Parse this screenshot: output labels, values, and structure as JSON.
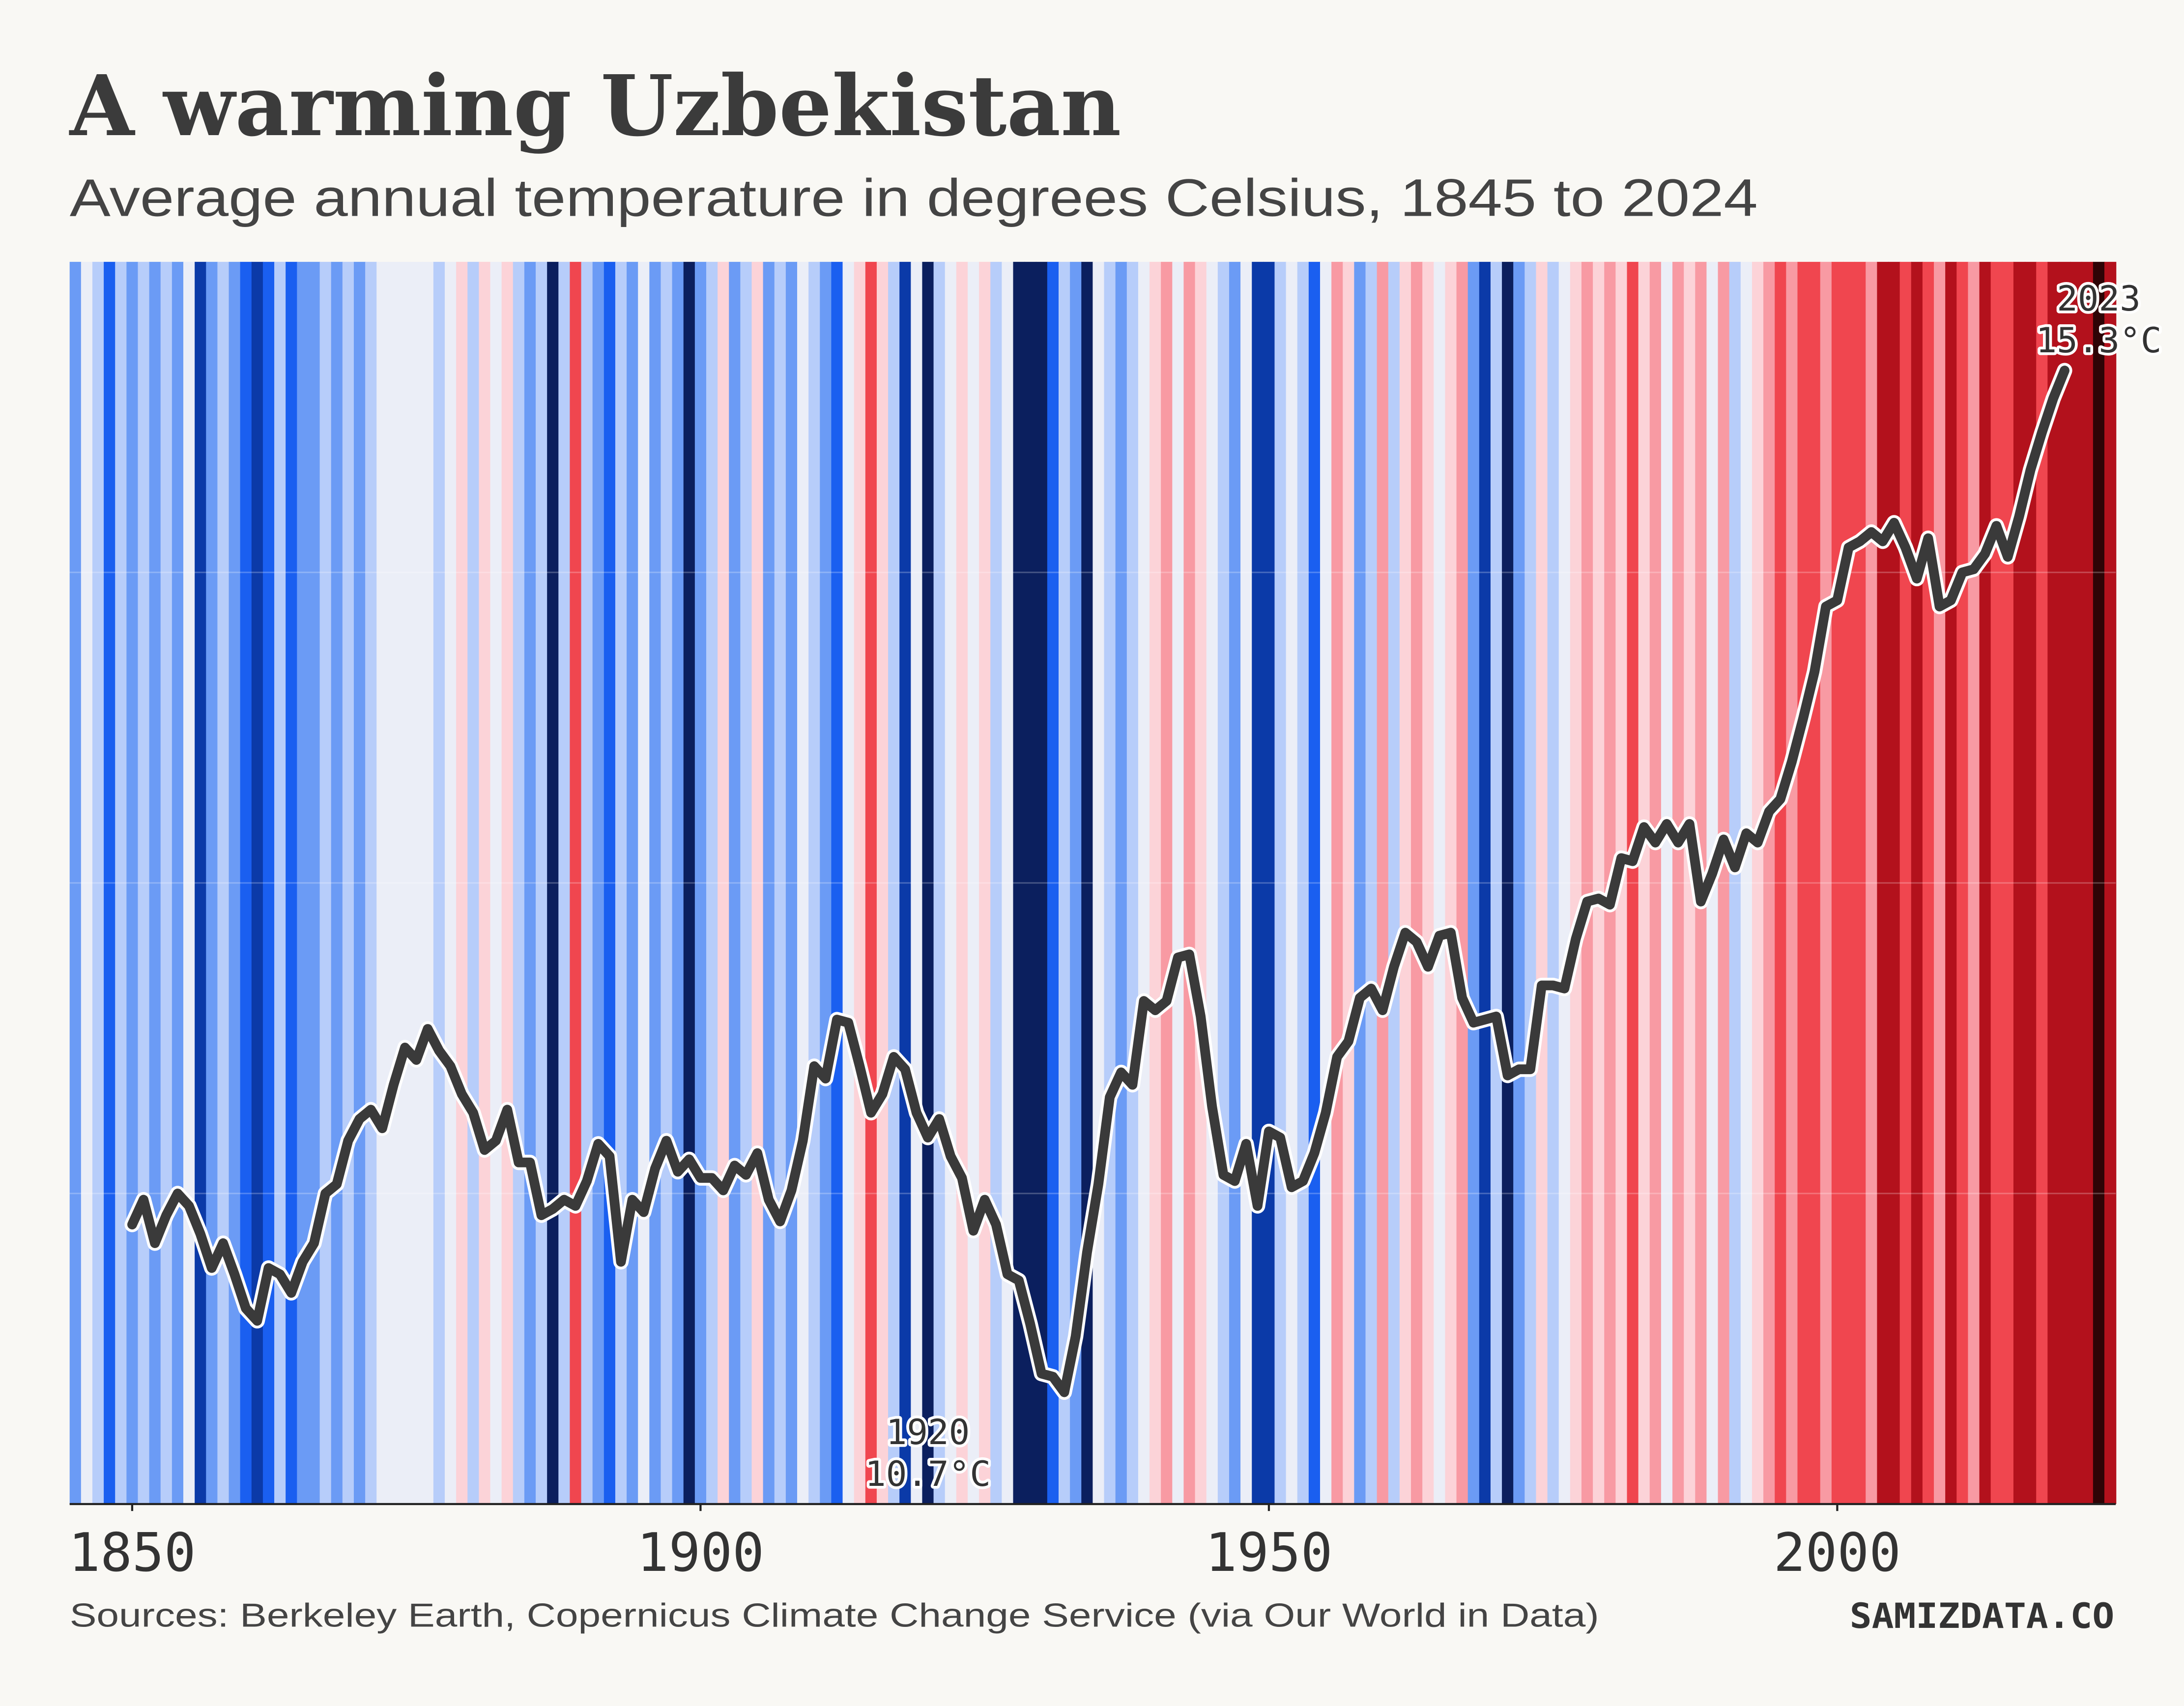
{
  "chart_data": {
    "type": "stripes",
    "title": "A warming Uzbekistan",
    "subtitle": "Average annual temperature in degrees Celsius, 1845 to 2024",
    "source": "Sources: Berkeley Earth, Copernicus Climate Change Service (via Our World in Data)",
    "brand": "SAMIZDATA.CO",
    "xlim": [
      1845,
      2025
    ],
    "xticks": [
      1850,
      1900,
      1950,
      2000
    ],
    "ylim": [
      11,
      15
    ],
    "ygrid": [
      12,
      13,
      14
    ],
    "stripe_colors": [
      "#0b1f5e",
      "#0b3aa8",
      "#1a5ff0",
      "#6b9bf5",
      "#b7cdfa",
      "#ebeef7",
      "#fcd3d8",
      "#f89aa3",
      "#f0464f",
      "#b3111c",
      "#2e0406"
    ],
    "stripe_color_range": [
      10.7,
      15.3
    ],
    "stripes": {
      "x": [
        1845,
        1846,
        1847,
        1848,
        1849,
        1850,
        1851,
        1852,
        1853,
        1854,
        1855,
        1856,
        1857,
        1858,
        1859,
        1860,
        1861,
        1862,
        1863,
        1864,
        1865,
        1866,
        1867,
        1868,
        1869,
        1870,
        1871,
        1872,
        1873,
        1874,
        1875,
        1876,
        1877,
        1878,
        1879,
        1880,
        1881,
        1882,
        1883,
        1884,
        1885,
        1886,
        1887,
        1888,
        1889,
        1890,
        1891,
        1892,
        1893,
        1894,
        1895,
        1896,
        1897,
        1898,
        1899,
        1900,
        1901,
        1902,
        1903,
        1904,
        1905,
        1906,
        1907,
        1908,
        1909,
        1910,
        1911,
        1912,
        1913,
        1914,
        1915,
        1916,
        1917,
        1918,
        1919,
        1920,
        1921,
        1922,
        1923,
        1924,
        1925,
        1926,
        1927,
        1928,
        1929,
        1930,
        1931,
        1932,
        1933,
        1934,
        1935,
        1936,
        1937,
        1938,
        1939,
        1940,
        1941,
        1942,
        1943,
        1944,
        1945,
        1946,
        1947,
        1948,
        1949,
        1950,
        1951,
        1952,
        1953,
        1954,
        1955,
        1956,
        1957,
        1958,
        1959,
        1960,
        1961,
        1962,
        1963,
        1964,
        1965,
        1966,
        1967,
        1968,
        1969,
        1970,
        1971,
        1972,
        1973,
        1974,
        1975,
        1976,
        1977,
        1978,
        1979,
        1980,
        1981,
        1982,
        1983,
        1984,
        1985,
        1986,
        1987,
        1988,
        1989,
        1990,
        1991,
        1992,
        1993,
        1994,
        1995,
        1996,
        1997,
        1998,
        1999,
        2000,
        2001,
        2002,
        2003,
        2004,
        2005,
        2006,
        2007,
        2008,
        2009,
        2010,
        2011,
        2012,
        2013,
        2014,
        2015,
        2016,
        2017,
        2018,
        2019,
        2020,
        2021,
        2022,
        2023,
        2024
      ],
      "values": [
        12.1,
        13.0,
        12.5,
        11.6,
        12.5,
        12.1,
        12.5,
        12.1,
        12.5,
        12.1,
        13.0,
        11.2,
        12.1,
        12.5,
        12.1,
        11.6,
        11.2,
        11.6,
        12.5,
        11.6,
        12.1,
        12.1,
        12.5,
        12.1,
        12.5,
        12.1,
        12.5,
        13.0,
        13.0,
        13.0,
        13.0,
        13.0,
        12.5,
        13.0,
        13.4,
        12.5,
        13.4,
        13.0,
        13.4,
        12.5,
        12.1,
        12.5,
        10.9,
        12.5,
        14.3,
        12.5,
        12.1,
        11.6,
        12.5,
        12.1,
        13.0,
        12.1,
        12.5,
        12.1,
        10.9,
        12.1,
        12.5,
        13.4,
        12.1,
        12.5,
        13.4,
        12.1,
        12.5,
        12.1,
        13.0,
        12.5,
        12.1,
        11.6,
        13.0,
        13.4,
        14.3,
        13.4,
        12.5,
        11.2,
        13.0,
        10.7,
        12.5,
        13.0,
        13.4,
        13.0,
        13.4,
        12.5,
        13.0,
        10.8,
        10.8,
        10.9,
        11.6,
        12.5,
        12.1,
        10.9,
        13.0,
        12.5,
        12.1,
        12.5,
        13.0,
        13.4,
        13.9,
        13.0,
        13.9,
        13.4,
        13.0,
        12.5,
        12.1,
        13.0,
        11.2,
        11.2,
        12.5,
        13.0,
        12.5,
        11.6,
        13.0,
        13.9,
        13.4,
        12.1,
        12.5,
        13.9,
        12.5,
        13.4,
        13.9,
        13.4,
        13.0,
        13.4,
        13.9,
        12.1,
        11.2,
        12.5,
        10.9,
        12.1,
        12.5,
        13.4,
        12.5,
        13.0,
        13.4,
        13.9,
        13.4,
        13.9,
        13.4,
        14.3,
        13.4,
        13.9,
        13.0,
        13.9,
        13.4,
        13.9,
        13.0,
        13.9,
        12.5,
        13.0,
        13.4,
        13.9,
        14.3,
        13.9,
        14.3,
        14.3,
        13.9,
        14.3,
        14.3,
        14.3,
        13.9,
        14.8,
        14.8,
        14.3,
        14.8,
        14.3,
        13.9,
        14.8,
        14.3,
        13.9,
        14.8,
        14.3,
        14.3,
        14.8,
        14.8,
        14.3,
        14.8,
        14.8,
        14.8,
        14.8,
        15.3,
        14.8
      ]
    },
    "series": [
      {
        "color": "#3a3a3a",
        "x": [
          1850,
          1851,
          1852,
          1853,
          1854,
          1855,
          1856,
          1857,
          1858,
          1859,
          1860,
          1861,
          1862,
          1863,
          1864,
          1865,
          1866,
          1867,
          1868,
          1869,
          1870,
          1871,
          1872,
          1873,
          1874,
          1875,
          1876,
          1877,
          1878,
          1879,
          1880,
          1881,
          1882,
          1883,
          1884,
          1885,
          1886,
          1887,
          1888,
          1889,
          1890,
          1891,
          1892,
          1893,
          1894,
          1895,
          1896,
          1897,
          1898,
          1899,
          1900,
          1901,
          1902,
          1903,
          1904,
          1905,
          1906,
          1907,
          1908,
          1909,
          1910,
          1911,
          1912,
          1913,
          1914,
          1915,
          1916,
          1917,
          1918,
          1919,
          1920,
          1921,
          1922,
          1923,
          1924,
          1925,
          1926,
          1927,
          1928,
          1929,
          1930,
          1931,
          1932,
          1933,
          1934,
          1935,
          1936,
          1937,
          1938,
          1939,
          1940,
          1941,
          1942,
          1943,
          1944,
          1945,
          1946,
          1947,
          1948,
          1949,
          1950,
          1951,
          1952,
          1953,
          1954,
          1955,
          1956,
          1957,
          1958,
          1959,
          1960,
          1961,
          1962,
          1963,
          1964,
          1965,
          1966,
          1967,
          1968,
          1969,
          1970,
          1971,
          1972,
          1973,
          1974,
          1975,
          1976,
          1977,
          1978,
          1979,
          1980,
          1981,
          1982,
          1983,
          1984,
          1985,
          1986,
          1987,
          1988,
          1989,
          1990,
          1991,
          1992,
          1993,
          1994,
          1995,
          1996,
          1997,
          1998,
          1999,
          2000,
          2001,
          2002,
          2003,
          2004,
          2005,
          2006,
          2007,
          2008,
          2009,
          2010,
          2011,
          2012,
          2013,
          2014,
          2015,
          2016,
          2017,
          2018,
          2019,
          2020
        ],
        "values": [
          11.9,
          11.98,
          11.84,
          11.93,
          12.0,
          11.96,
          11.87,
          11.76,
          11.84,
          11.74,
          11.63,
          11.59,
          11.76,
          11.74,
          11.68,
          11.78,
          11.84,
          12.0,
          12.03,
          12.17,
          12.24,
          12.27,
          12.21,
          12.35,
          12.47,
          12.43,
          12.53,
          12.46,
          12.41,
          12.32,
          12.26,
          12.14,
          12.17,
          12.27,
          12.1,
          12.1,
          11.93,
          11.95,
          11.98,
          11.96,
          12.04,
          12.16,
          12.12,
          11.78,
          11.98,
          11.94,
          12.08,
          12.17,
          12.07,
          12.11,
          12.05,
          12.05,
          12.01,
          12.09,
          12.06,
          12.13,
          11.98,
          11.91,
          12.01,
          12.17,
          12.41,
          12.37,
          12.56,
          12.55,
          12.41,
          12.26,
          12.32,
          12.44,
          12.4,
          12.26,
          12.18,
          12.24,
          12.12,
          12.05,
          11.88,
          11.98,
          11.9,
          11.74,
          11.72,
          11.58,
          11.42,
          11.41,
          11.36,
          11.54,
          11.81,
          12.03,
          12.31,
          12.39,
          12.35,
          12.62,
          12.59,
          12.62,
          12.76,
          12.77,
          12.57,
          12.28,
          12.06,
          12.04,
          12.16,
          11.96,
          12.2,
          12.18,
          12.02,
          12.04,
          12.13,
          12.26,
          12.44,
          12.49,
          12.63,
          12.66,
          12.59,
          12.73,
          12.84,
          12.81,
          12.73,
          12.83,
          12.84,
          12.63,
          12.55,
          12.56,
          12.57,
          12.38,
          12.4,
          12.4,
          12.67,
          12.67,
          12.66,
          12.82,
          12.94,
          12.95,
          12.93,
          13.08,
          13.07,
          13.18,
          13.13,
          13.19,
          13.13,
          13.19,
          12.94,
          13.03,
          13.14,
          13.05,
          13.16,
          13.13,
          13.23,
          13.27,
          13.39,
          13.53,
          13.68,
          13.89,
          13.91,
          14.08,
          14.1,
          14.13,
          14.1,
          14.16,
          14.08,
          13.98,
          14.11,
          13.89,
          13.91,
          14.0,
          14.01,
          14.06,
          14.15,
          14.05,
          14.18,
          14.33,
          14.45,
          14.56,
          14.65
        ]
      }
    ],
    "annotations": [
      {
        "x": 1920,
        "label": "1920",
        "text": "10.7°C",
        "anchor": "bottom"
      },
      {
        "x": 2023,
        "label": "2023",
        "text": "15.3°C",
        "anchor": "top"
      }
    ]
  }
}
